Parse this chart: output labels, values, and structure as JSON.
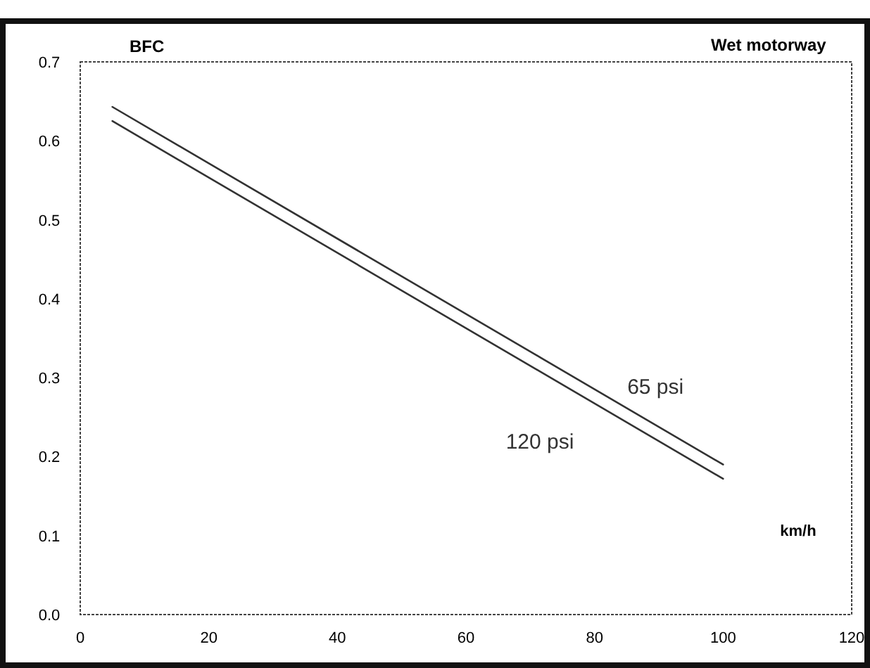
{
  "chart_data": {
    "type": "line",
    "title": "Wet motorway",
    "ylabel": "BFC",
    "xlabel": "km/h",
    "xlim": [
      0,
      120
    ],
    "xticks": [
      0,
      20,
      40,
      60,
      80,
      100,
      120
    ],
    "ylim": [
      0,
      0.7
    ],
    "yticks": [
      {
        "value": 0,
        "label": "0.0"
      },
      0.1,
      0.2,
      0.3,
      0.4,
      0.5,
      0.6,
      0.7
    ],
    "grid": false,
    "legend": false,
    "marker": "none",
    "line_style": "solid",
    "x": [
      5,
      100
    ],
    "series": [
      {
        "name": "65 psi",
        "color": "#333333",
        "values": [
          0.643,
          0.19
        ]
      },
      {
        "name": "120 psi",
        "color": "#333333",
        "values": [
          0.625,
          0.172
        ]
      }
    ]
  }
}
